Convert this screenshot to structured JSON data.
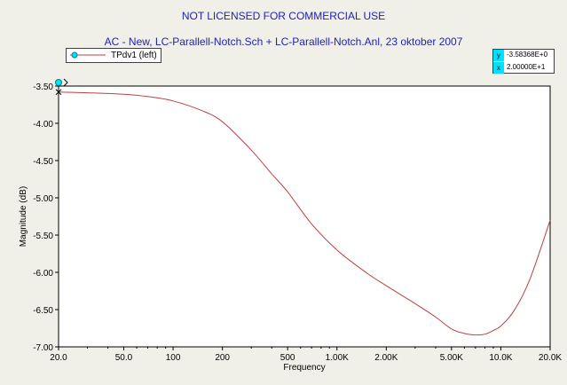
{
  "header": {
    "title": "NOT LICENSED FOR COMMERCIAL USE",
    "subtitle": "AC - New,    LC-Parallell-Notch.Sch + LC-Parallell-Notch.Anl,   23 oktober 2007"
  },
  "legend": {
    "label": "TPdv1 (left)"
  },
  "cursor": {
    "y_key": "y",
    "y_value": "-3.58368E+0",
    "x_key": "x",
    "x_value": "2.00000E+1"
  },
  "colors": {
    "series": "#c04040",
    "title": "#2020c0",
    "cursor": "#00e0ff"
  },
  "chart_data": {
    "type": "line",
    "xlabel": "Frequency",
    "ylabel": "Magnitude  (dB)",
    "xscale": "log",
    "xlim": [
      20,
      20000
    ],
    "ylim": [
      -7.0,
      -3.5
    ],
    "xticks": [
      20,
      50,
      100,
      200,
      500,
      1000,
      2000,
      5000,
      10000,
      20000
    ],
    "xtick_labels": [
      "20.0",
      "50.0",
      "100",
      "200",
      "500",
      "1.00K",
      "2.00K",
      "5.00K",
      "10.0K",
      "20.0K"
    ],
    "yticks": [
      -3.5,
      -4.0,
      -4.5,
      -5.0,
      -5.5,
      -6.0,
      -6.5,
      -7.0
    ],
    "ytick_labels": [
      "-3.50",
      "-4.00",
      "-4.50",
      "-5.00",
      "-5.50",
      "-6.00",
      "-6.50",
      "-7.00"
    ],
    "grid": false,
    "legend_position": "top-left",
    "series": [
      {
        "name": "TPdv1 (left)",
        "x": [
          20,
          30,
          50,
          70,
          100,
          150,
          200,
          300,
          400,
          500,
          700,
          1000,
          1500,
          2000,
          3000,
          4000,
          5000,
          6000,
          7000,
          8000,
          9000,
          10000,
          12000,
          15000,
          20000
        ],
        "y": [
          -3.58,
          -3.59,
          -3.61,
          -3.64,
          -3.7,
          -3.83,
          -3.98,
          -4.36,
          -4.68,
          -4.92,
          -5.35,
          -5.7,
          -6.0,
          -6.18,
          -6.42,
          -6.6,
          -6.76,
          -6.82,
          -6.84,
          -6.83,
          -6.78,
          -6.72,
          -6.52,
          -6.1,
          -5.3
        ]
      }
    ]
  }
}
